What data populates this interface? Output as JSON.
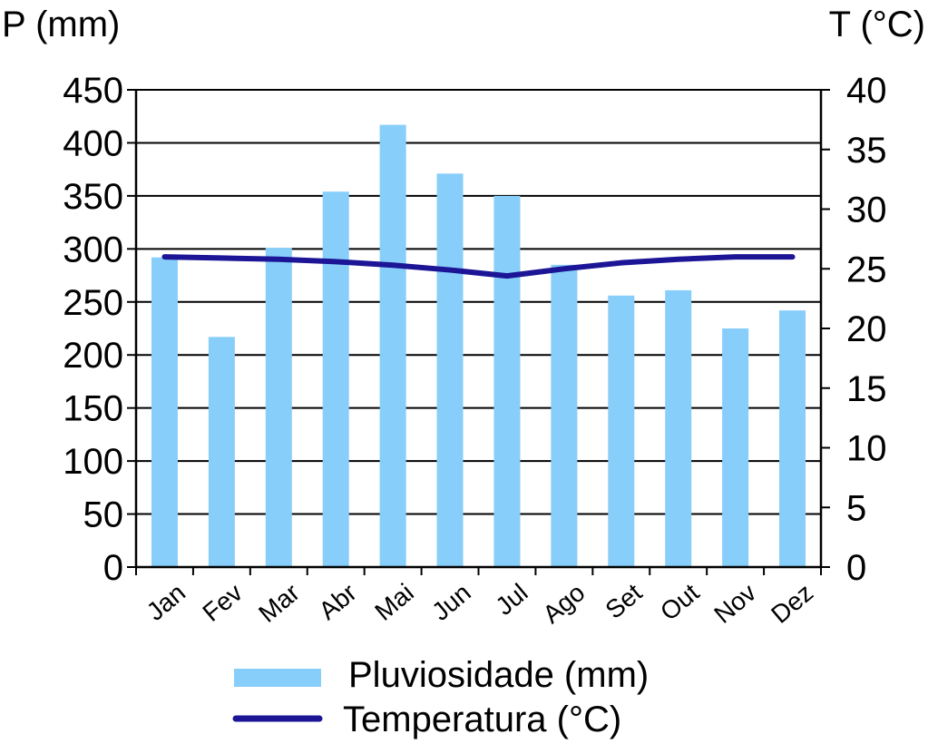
{
  "chart_data": {
    "type": "bar",
    "categories": [
      "Jan",
      "Fev",
      "Mar",
      "Abr",
      "Mai",
      "Jun",
      "Jul",
      "Ago",
      "Set",
      "Out",
      "Nov",
      "Dez"
    ],
    "series": [
      {
        "name": "Pluviosidade (mm)",
        "type": "bar",
        "axis": "left",
        "color": "#87cefa",
        "values": [
          292,
          217,
          301,
          354,
          417,
          371,
          350,
          285,
          256,
          261,
          225,
          242
        ]
      },
      {
        "name": "Temperatura (°C)",
        "type": "line",
        "axis": "right",
        "color": "#1c1596",
        "values": [
          26.0,
          25.9,
          25.8,
          25.6,
          25.3,
          24.9,
          24.4,
          25.0,
          25.5,
          25.8,
          26.0,
          26.0
        ]
      }
    ],
    "y_left": {
      "label": "P (mm)",
      "range": [
        0,
        450
      ],
      "ticks": [
        "0",
        "50",
        "100",
        "150",
        "200",
        "250",
        "300",
        "350",
        "400",
        "450"
      ]
    },
    "y_right": {
      "label": "T (°C)",
      "range": [
        0,
        40
      ],
      "ticks": [
        "0",
        "5",
        "10",
        "15",
        "20",
        "25",
        "30",
        "35",
        "40"
      ]
    },
    "grid": true,
    "legend_position": "bottom-center"
  }
}
